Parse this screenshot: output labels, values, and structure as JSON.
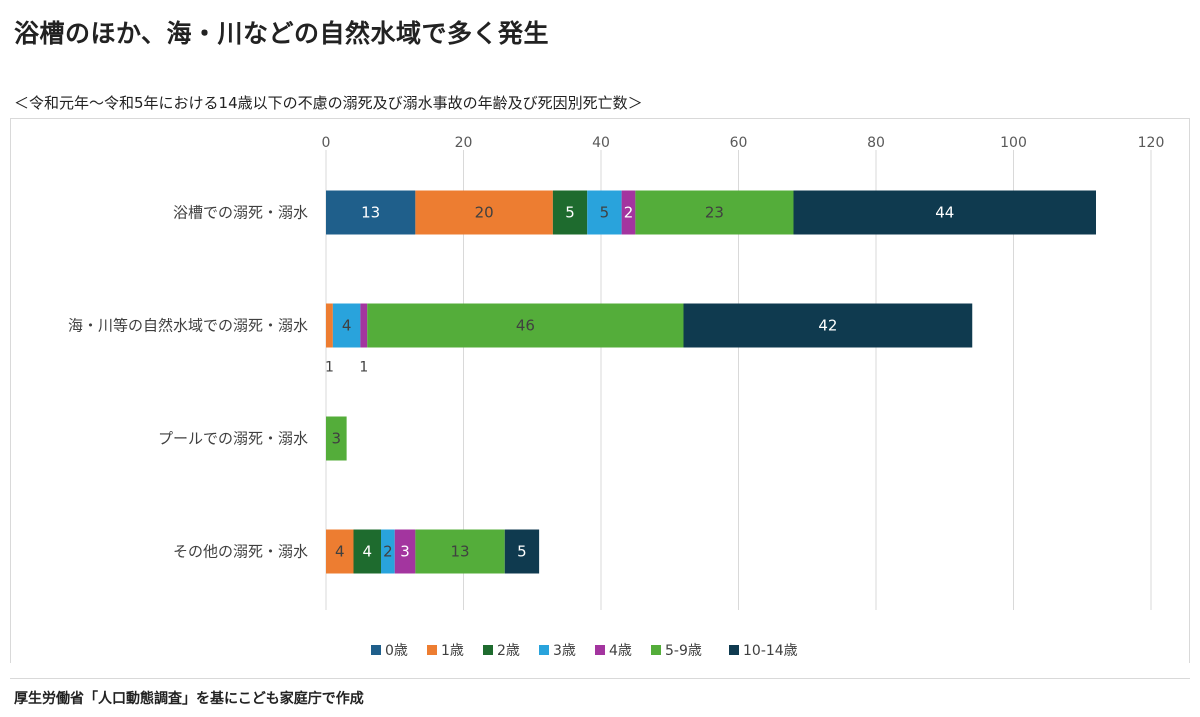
{
  "headline": "浴槽のほか、海・川などの自然水域で多く発生",
  "chart_data": {
    "type": "bar",
    "orientation": "horizontal",
    "stacked": true,
    "title": "＜令和元年～令和5年における14歳以下の不慮の溺死及び溺水事故の年齢及び死因別死亡数＞",
    "categories": [
      "浴槽での溺死・溺水",
      "海・川等の自然水域での溺死・溺水",
      "プールでの溺死・溺水",
      "その他の溺死・溺水"
    ],
    "series": [
      {
        "name": "0歳",
        "color": "#1f5f8b",
        "values": [
          13,
          0,
          0,
          0
        ],
        "labels": [
          "13",
          "",
          "",
          ""
        ]
      },
      {
        "name": "1歳",
        "color": "#ed7d31",
        "values": [
          20,
          1,
          0,
          4
        ],
        "labels": [
          "20",
          "1",
          "",
          "4"
        ]
      },
      {
        "name": "2歳",
        "color": "#1e6b2e",
        "values": [
          5,
          0,
          0,
          4
        ],
        "labels": [
          "5",
          "",
          "",
          "4"
        ]
      },
      {
        "name": "3歳",
        "color": "#29a3dc",
        "values": [
          5,
          4,
          0,
          2
        ],
        "labels": [
          "5",
          "4",
          "",
          "2"
        ]
      },
      {
        "name": "4歳",
        "color": "#a3359f",
        "values": [
          2,
          1,
          0,
          3
        ],
        "labels": [
          "2",
          "1",
          "",
          "3"
        ]
      },
      {
        "name": "5-9歳",
        "color": "#54ad3a",
        "values": [
          23,
          46,
          3,
          13
        ],
        "labels": [
          "23",
          "46",
          "3",
          "13"
        ]
      },
      {
        "name": "10-14歳",
        "color": "#0f3a4f",
        "values": [
          44,
          42,
          0,
          5
        ],
        "labels": [
          "44",
          "42",
          "",
          "5"
        ]
      }
    ],
    "xlim": [
      0,
      120
    ],
    "xticks": [
      "0",
      "20",
      "40",
      "60",
      "80",
      "100",
      "120"
    ],
    "grid": true,
    "legend": "bottom"
  },
  "source": "厚生労働省「人口動態調査」を基にこども家庭庁で作成"
}
